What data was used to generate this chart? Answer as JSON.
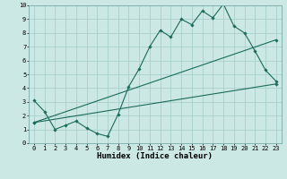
{
  "xlabel": "Humidex (Indice chaleur)",
  "ylabel": "",
  "bg_color": "#cce8e4",
  "grid_color": "#aacfcc",
  "line_color": "#1a6b5a",
  "xlim": [
    -0.5,
    23.5
  ],
  "ylim": [
    0,
    10
  ],
  "xticks": [
    0,
    1,
    2,
    3,
    4,
    5,
    6,
    7,
    8,
    9,
    10,
    11,
    12,
    13,
    14,
    15,
    16,
    17,
    18,
    19,
    20,
    21,
    22,
    23
  ],
  "yticks": [
    0,
    1,
    2,
    3,
    4,
    5,
    6,
    7,
    8,
    9,
    10
  ],
  "line1_x": [
    0,
    1,
    2,
    3,
    4,
    5,
    6,
    7,
    8,
    9,
    10,
    11,
    12,
    13,
    14,
    15,
    16,
    17,
    18,
    19,
    20,
    21,
    22,
    23
  ],
  "line1_y": [
    3.1,
    2.3,
    1.0,
    1.3,
    1.6,
    1.1,
    0.7,
    0.5,
    2.1,
    4.1,
    5.4,
    7.0,
    8.2,
    7.7,
    9.0,
    8.6,
    9.6,
    9.1,
    10.1,
    8.5,
    8.0,
    6.7,
    5.3,
    4.5
  ],
  "line2_x": [
    0,
    23
  ],
  "line2_y": [
    1.5,
    7.5
  ],
  "line3_x": [
    0,
    23
  ],
  "line3_y": [
    1.5,
    4.3
  ],
  "tick_fontsize": 5,
  "xlabel_fontsize": 6.5
}
